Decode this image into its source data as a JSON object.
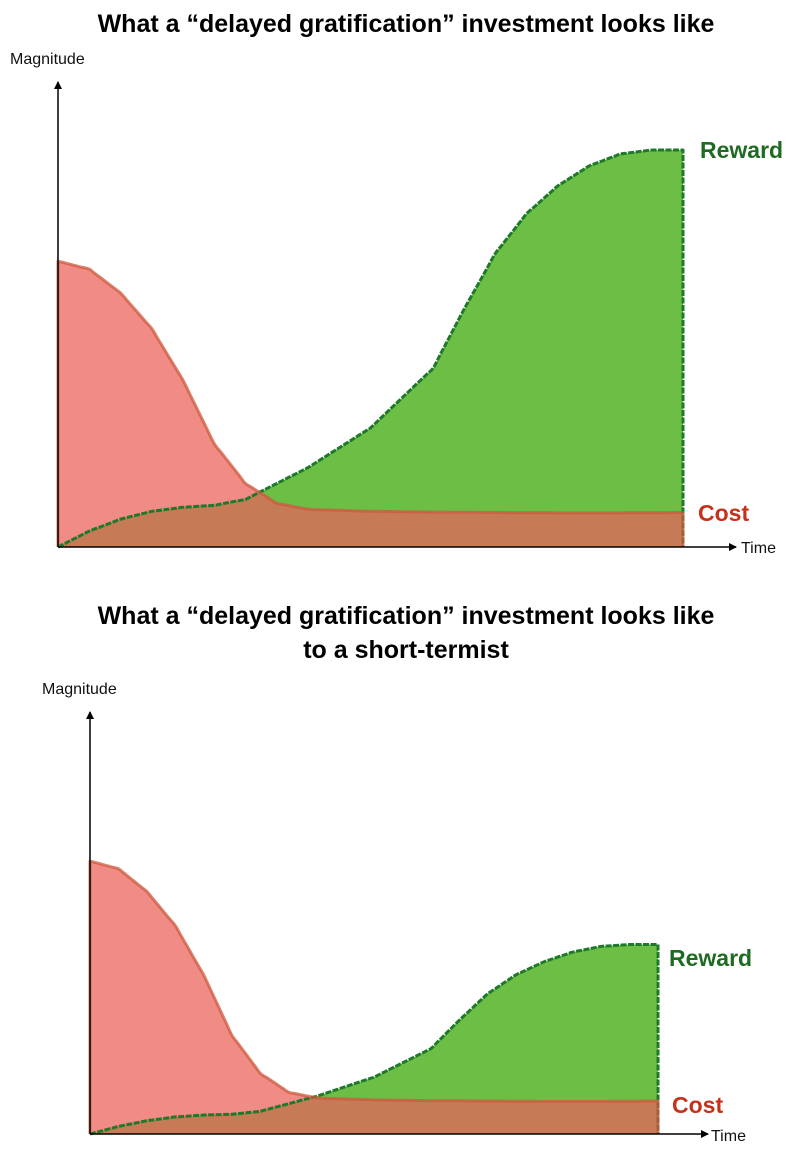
{
  "colors": {
    "reward_fill": "#6dbe45",
    "reward_stroke": "#1e7a2a",
    "cost_fill": "#f08b85",
    "cost_stroke": "#cc5a3e",
    "overlap_fill": "#c67a55",
    "reward_label": "#1e6b22",
    "cost_label": "#c4321a",
    "axis": "#000000"
  },
  "chart_data": [
    {
      "type": "area",
      "title": "What a “delayed gratification” investment looks like",
      "subtitle": "",
      "xlabel": "Time",
      "ylabel": "Magnitude",
      "xlim": [
        0,
        1
      ],
      "ylim": [
        0,
        1
      ],
      "grid": false,
      "legend": "series labels at right end of curves",
      "series": [
        {
          "name": "Cost",
          "x": [
            0,
            0.05,
            0.1,
            0.15,
            0.2,
            0.25,
            0.3,
            0.35,
            0.4,
            0.5,
            0.6,
            0.7,
            0.8,
            0.9,
            1.0
          ],
          "values": [
            0.72,
            0.7,
            0.64,
            0.55,
            0.42,
            0.26,
            0.16,
            0.11,
            0.095,
            0.09,
            0.088,
            0.087,
            0.086,
            0.086,
            0.087
          ]
        },
        {
          "name": "Reward",
          "x": [
            0,
            0.05,
            0.1,
            0.15,
            0.2,
            0.25,
            0.3,
            0.35,
            0.4,
            0.5,
            0.6,
            0.65,
            0.7,
            0.75,
            0.8,
            0.85,
            0.9,
            0.95,
            1.0
          ],
          "values": [
            0,
            0.04,
            0.07,
            0.09,
            0.1,
            0.105,
            0.12,
            0.16,
            0.2,
            0.3,
            0.45,
            0.6,
            0.74,
            0.84,
            0.91,
            0.96,
            0.99,
            1.0,
            1.0
          ]
        }
      ]
    },
    {
      "type": "area",
      "title": "What a “delayed gratification” investment looks like",
      "subtitle": "to a short-termist",
      "xlabel": "Time",
      "ylabel": "Magnitude",
      "xlim": [
        0,
        1
      ],
      "ylim": [
        0,
        1
      ],
      "grid": false,
      "legend": "series labels at right end of curves",
      "series": [
        {
          "name": "Cost",
          "x": [
            0,
            0.05,
            0.1,
            0.15,
            0.2,
            0.25,
            0.3,
            0.35,
            0.4,
            0.5,
            0.6,
            0.7,
            0.8,
            0.9,
            1.0
          ],
          "values": [
            0.72,
            0.7,
            0.64,
            0.55,
            0.42,
            0.26,
            0.16,
            0.11,
            0.095,
            0.09,
            0.088,
            0.087,
            0.086,
            0.086,
            0.087
          ]
        },
        {
          "name": "Reward",
          "x": [
            0,
            0.05,
            0.1,
            0.15,
            0.2,
            0.25,
            0.3,
            0.35,
            0.4,
            0.5,
            0.6,
            0.65,
            0.7,
            0.75,
            0.8,
            0.85,
            0.9,
            0.95,
            1.0
          ],
          "values": [
            0,
            0.02,
            0.035,
            0.045,
            0.05,
            0.052,
            0.06,
            0.08,
            0.1,
            0.15,
            0.225,
            0.3,
            0.37,
            0.42,
            0.455,
            0.48,
            0.495,
            0.5,
            0.5
          ]
        }
      ]
    }
  ]
}
